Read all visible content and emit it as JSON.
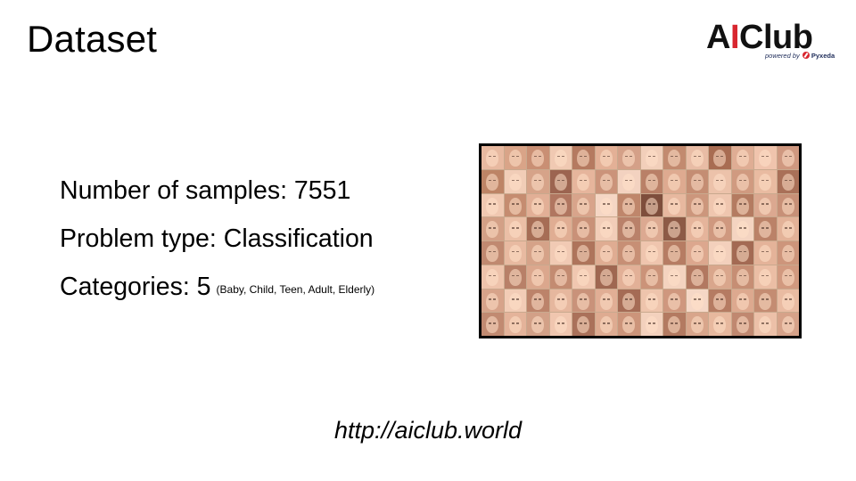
{
  "slide": {
    "title": "Dataset"
  },
  "logo": {
    "ai_a": "A",
    "ai_i": "I",
    "club": "Club",
    "powered_by": "powered by",
    "partner": "Pyxeda",
    "accent_color": "#d8262f"
  },
  "info": {
    "samples_line": "Number of samples: 7551",
    "problem_line": "Problem type: Classification",
    "categories_line": "Categories: 5",
    "categories_note": "(Baby, Child, Teen, Adult, Elderly)"
  },
  "mosaic": {
    "icon": "face-photo-collage",
    "tile_colors": [
      "#e8b9a0",
      "#d9a488",
      "#c98f74",
      "#f0c9b2",
      "#b57a60",
      "#e3b096",
      "#d4a088",
      "#f2cfba",
      "#c28a6f",
      "#e8bca5",
      "#a86c52",
      "#dfad94",
      "#f0c4ad",
      "#cf9880",
      "#bd8466",
      "#f1cdb7",
      "#d6a389",
      "#9c6450",
      "#e6b59c",
      "#cb937a",
      "#f3d2c0",
      "#b98067",
      "#deaa90",
      "#c48d73",
      "#ecc2aa",
      "#d09a80",
      "#e9bba1",
      "#a97058",
      "#f0c8b1",
      "#c58c70",
      "#e2af96",
      "#b07660",
      "#d8a48b",
      "#f5d6c4",
      "#bf866b",
      "#7e4e3c",
      "#e7b89f",
      "#cc967c",
      "#efc6af",
      "#b47b61",
      "#dba890",
      "#c79077",
      "#d3a086",
      "#ebbfa6",
      "#a66d55",
      "#e0ad93",
      "#c99178",
      "#f2cdb8",
      "#b9816a",
      "#dca991",
      "#8d5a46",
      "#e5b49b",
      "#cf987f",
      "#f4d4c1",
      "#bb8268",
      "#e3b298",
      "#c08970",
      "#e8baa1",
      "#d5a288",
      "#f1cab4",
      "#ae745b",
      "#dfac92",
      "#c78f75",
      "#efc5ae",
      "#b67c63",
      "#dca78e",
      "#f3d0bc",
      "#a36a53",
      "#e4b399",
      "#cd957b",
      "#eec3ab",
      "#b88068",
      "#dba78d",
      "#c38b71",
      "#f0c7b0",
      "#9f6751",
      "#e2b097",
      "#cb9379",
      "#f4d3bf",
      "#b27860",
      "#d9a68c",
      "#c68e74",
      "#ebbea5",
      "#d1997f",
      "#d7a38a",
      "#f2ccb6",
      "#bc836a",
      "#e6b79e",
      "#c9927a",
      "#e1ae95",
      "#a56b55",
      "#eec4ac",
      "#cf977e",
      "#f5d7c6",
      "#b57b62",
      "#dda98f",
      "#c48c72",
      "#e9bba2",
      "#c18a71",
      "#e4b39a",
      "#d2a087",
      "#f0c6af",
      "#aa715a",
      "#deab91",
      "#cc947a",
      "#f3d1bd",
      "#b37a61",
      "#d8a58b",
      "#e7b89e",
      "#c08870",
      "#ecc0a8",
      "#d6a289"
    ]
  }
}
